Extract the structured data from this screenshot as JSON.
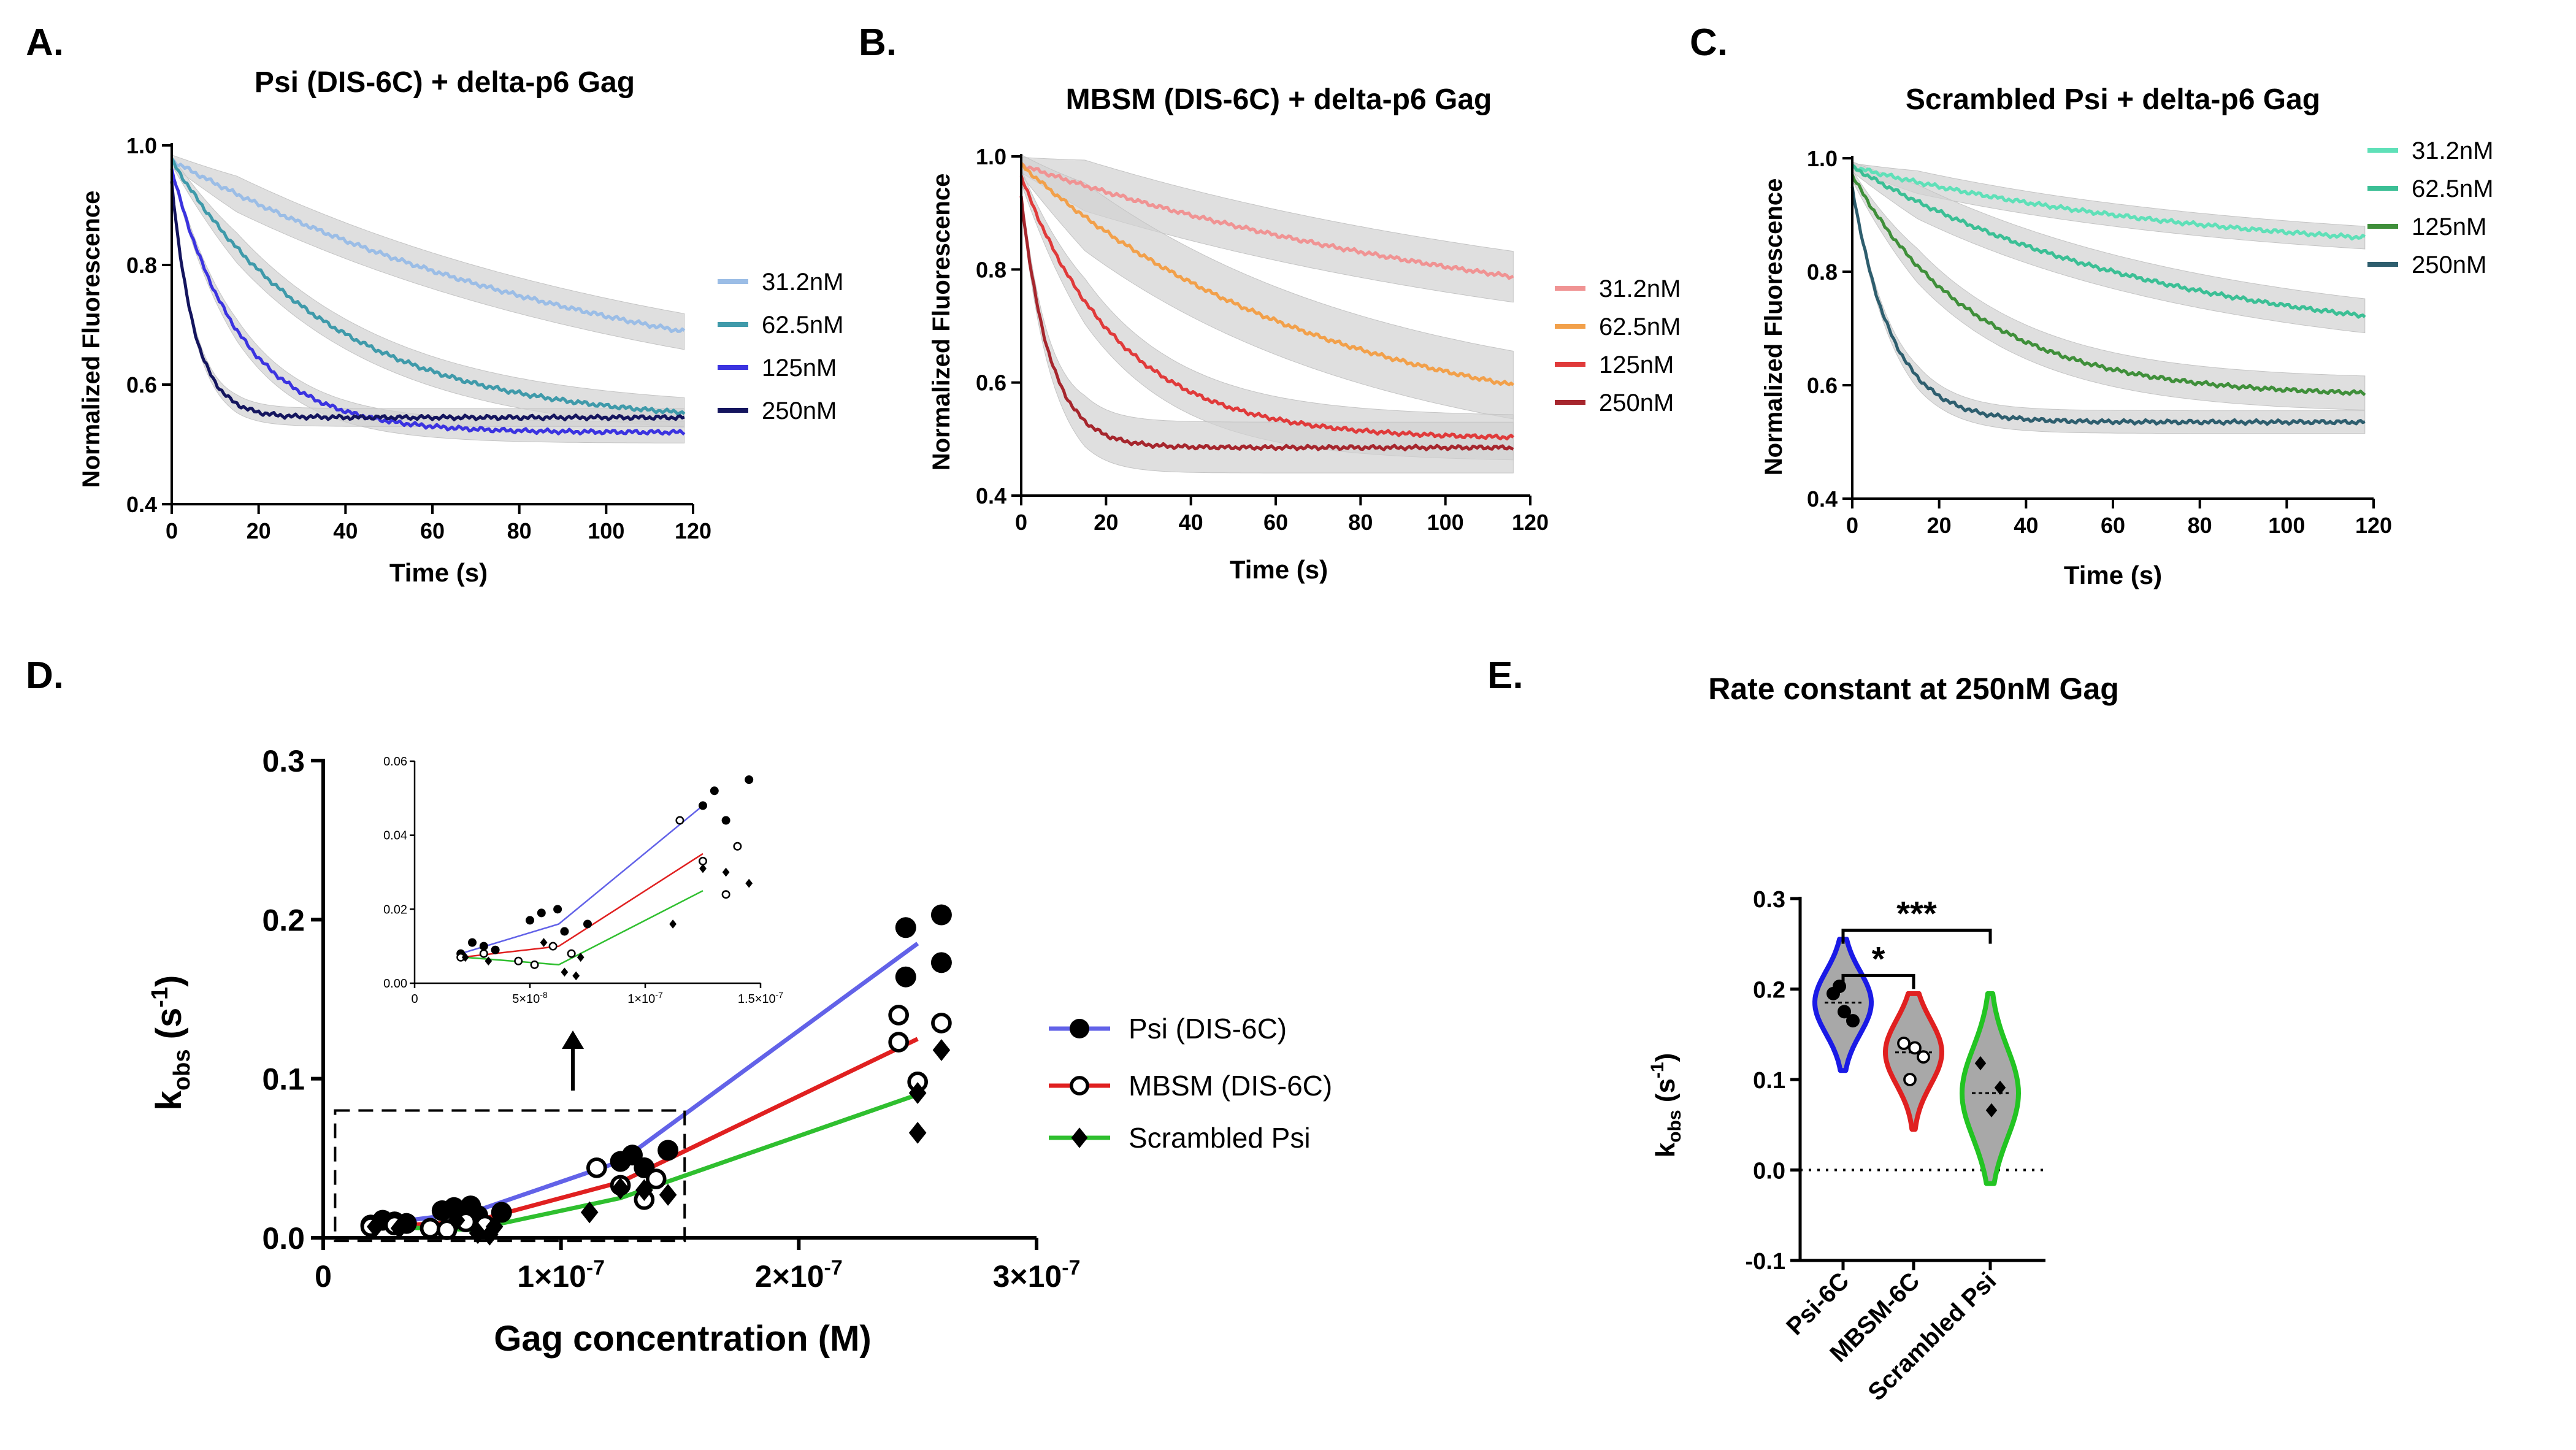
{
  "chart_data": [
    {
      "id": "A",
      "panel_label": "A.",
      "type": "line",
      "title": "Psi (DIS-6C) + delta-p6 Gag",
      "xlabel": "Time (s)",
      "ylabel": "Normalized Fluorescence",
      "xlim": [
        0,
        120
      ],
      "ylim": [
        0.4,
        1.0
      ],
      "xticks": [
        0,
        20,
        40,
        60,
        80,
        100,
        120
      ],
      "yticks": [
        0.4,
        0.6,
        0.8,
        1.0
      ],
      "x_tick_labels": [
        "0",
        "20",
        "40",
        "60",
        "80",
        "100",
        "120"
      ],
      "y_tick_labels": [
        "0.4",
        "0.6",
        "0.8",
        "1.0"
      ],
      "x_end": 118,
      "error_band": "light grey SEM band",
      "series": [
        {
          "name": "31.2nM",
          "color": "#9bbde6",
          "start": 0.975,
          "plateau": 0.55,
          "k": 0.0095,
          "err": 0.03
        },
        {
          "name": "62.5nM",
          "color": "#3f9aaa",
          "start": 0.975,
          "plateau": 0.535,
          "k": 0.027,
          "err": 0.025
        },
        {
          "name": "125nM",
          "color": "#3b33e0",
          "start": 0.96,
          "plateau": 0.52,
          "k": 0.063,
          "err": 0.018
        },
        {
          "name": "250nM",
          "color": "#14155e",
          "start": 0.94,
          "plateau": 0.545,
          "k": 0.19,
          "err": 0.015
        }
      ]
    },
    {
      "id": "B",
      "panel_label": "B.",
      "type": "line",
      "title": "MBSM (DIS-6C) + delta-p6 Gag",
      "xlabel": "Time (s)",
      "ylabel": "Normalized Fluorescence",
      "xlim": [
        0,
        120
      ],
      "ylim": [
        0.4,
        1.0
      ],
      "xticks": [
        0,
        20,
        40,
        60,
        80,
        100,
        120
      ],
      "yticks": [
        0.4,
        0.6,
        0.8,
        1.0
      ],
      "x_tick_labels": [
        "0",
        "20",
        "40",
        "60",
        "80",
        "100",
        "120"
      ],
      "y_tick_labels": [
        "0.4",
        "0.6",
        "0.8",
        "1.0"
      ],
      "x_end": 116,
      "error_band": "light grey SEM band",
      "series": [
        {
          "name": "31.2nM",
          "color": "#f09393",
          "start": 0.985,
          "plateau": 0.65,
          "k": 0.0077,
          "err": 0.045
        },
        {
          "name": "62.5nM",
          "color": "#f2a04a",
          "start": 0.985,
          "plateau": 0.5,
          "k": 0.014,
          "err": 0.06
        },
        {
          "name": "125nM",
          "color": "#e03a3a",
          "start": 0.965,
          "plateau": 0.5,
          "k": 0.043,
          "err": 0.04
        },
        {
          "name": "250nM",
          "color": "#a6262d",
          "start": 0.93,
          "plateau": 0.485,
          "k": 0.15,
          "err": 0.045
        }
      ]
    },
    {
      "id": "C",
      "panel_label": "C.",
      "type": "line",
      "title": "Scrambled Psi + delta-p6 Gag",
      "xlabel": "Time (s)",
      "ylabel": "Normalized Fluorescence",
      "xlim": [
        0,
        120
      ],
      "ylim": [
        0.4,
        1.0
      ],
      "xticks": [
        0,
        20,
        40,
        60,
        80,
        100,
        120
      ],
      "yticks": [
        0.4,
        0.6,
        0.8,
        1.0
      ],
      "x_tick_labels": [
        "0",
        "20",
        "40",
        "60",
        "80",
        "100",
        "120"
      ],
      "y_tick_labels": [
        "0.4",
        "0.6",
        "0.8",
        "1.0"
      ],
      "x_end": 118,
      "error_band": "light grey SEM band",
      "series": [
        {
          "name": "31.2nM",
          "color": "#5fe0b8",
          "start": 0.985,
          "plateau": 0.82,
          "k": 0.012,
          "err": 0.02
        },
        {
          "name": "62.5nM",
          "color": "#3bbf95",
          "start": 0.985,
          "plateau": 0.66,
          "k": 0.014,
          "err": 0.03
        },
        {
          "name": "125nM",
          "color": "#3f8f3a",
          "start": 0.97,
          "plateau": 0.58,
          "k": 0.035,
          "err": 0.03
        },
        {
          "name": "250nM",
          "color": "#2e5e6e",
          "start": 0.95,
          "plateau": 0.535,
          "k": 0.11,
          "err": 0.02
        }
      ]
    },
    {
      "id": "D",
      "panel_label": "D.",
      "type": "scatter",
      "title": "",
      "xlabel": "Gag concentration (M)",
      "ylabel_main": "k",
      "ylabel_sub": "obs",
      "ylabel_unit_open": " (s",
      "ylabel_unit_sup": "-1",
      "ylabel_unit_close": ")",
      "xlim": [
        0,
        3e-07
      ],
      "ylim": [
        0,
        0.3
      ],
      "xticks": [
        0,
        1e-07,
        2e-07,
        3e-07
      ],
      "x_tick_labels": [
        "0",
        "1×10",
        "2×10",
        "3×10"
      ],
      "x_tick_exponent": "-7",
      "yticks": [
        0.0,
        0.1,
        0.2,
        0.3
      ],
      "y_tick_labels": [
        "0.0",
        "0.1",
        "0.2",
        "0.3"
      ],
      "series": [
        {
          "name": "Psi (DIS-6C)",
          "marker": "filled-circle",
          "line_color": "#6262e8",
          "points": [
            [
              2e-08,
              0.008
            ],
            [
              2.5e-08,
              0.011
            ],
            [
              3e-08,
              0.01
            ],
            [
              3.5e-08,
              0.009
            ],
            [
              5e-08,
              0.017
            ],
            [
              5.5e-08,
              0.019
            ],
            [
              6.2e-08,
              0.02
            ],
            [
              6.5e-08,
              0.014
            ],
            [
              7.5e-08,
              0.016
            ],
            [
              1.25e-07,
              0.048
            ],
            [
              1.3e-07,
              0.052
            ],
            [
              1.45e-07,
              0.055
            ],
            [
              1.35e-07,
              0.044
            ],
            [
              2.45e-07,
              0.195
            ],
            [
              2.45e-07,
              0.164
            ],
            [
              2.6e-07,
              0.203
            ],
            [
              2.6e-07,
              0.173
            ]
          ],
          "fit": [
            [
              2e-08,
              0.008
            ],
            [
              6.25e-08,
              0.016
            ],
            [
              1.25e-07,
              0.048
            ],
            [
              2.5e-07,
              0.185
            ]
          ]
        },
        {
          "name": "MBSM (DIS-6C)",
          "marker": "open-circle",
          "line_color": "#e02020",
          "points": [
            [
              2e-08,
              0.007
            ],
            [
              3e-08,
              0.008
            ],
            [
              4.5e-08,
              0.006
            ],
            [
              5.2e-08,
              0.005
            ],
            [
              6e-08,
              0.01
            ],
            [
              6.8e-08,
              0.008
            ],
            [
              1.15e-07,
              0.044
            ],
            [
              1.25e-07,
              0.033
            ],
            [
              1.35e-07,
              0.024
            ],
            [
              1.4e-07,
              0.037
            ],
            [
              2.42e-07,
              0.14
            ],
            [
              2.42e-07,
              0.123
            ],
            [
              2.5e-07,
              0.098
            ],
            [
              2.6e-07,
              0.135
            ]
          ],
          "fit": [
            [
              2e-08,
              0.007
            ],
            [
              6.25e-08,
              0.01
            ],
            [
              1.25e-07,
              0.035
            ],
            [
              2.5e-07,
              0.125
            ]
          ]
        },
        {
          "name": "Scrambled Psi",
          "marker": "filled-diamond",
          "line_color": "#2fbf2f",
          "points": [
            [
              2.2e-08,
              0.007
            ],
            [
              3.2e-08,
              0.006
            ],
            [
              5.6e-08,
              0.011
            ],
            [
              6.5e-08,
              0.003
            ],
            [
              7e-08,
              0.002
            ],
            [
              7.2e-08,
              0.007
            ],
            [
              1.12e-07,
              0.016
            ],
            [
              1.25e-07,
              0.031
            ],
            [
              1.35e-07,
              0.03
            ],
            [
              1.45e-07,
              0.027
            ],
            [
              2.5e-07,
              0.091
            ],
            [
              2.5e-07,
              0.066
            ],
            [
              2.6e-07,
              0.118
            ]
          ],
          "fit": [
            [
              2.2e-08,
              0.007
            ],
            [
              6.25e-08,
              0.005
            ],
            [
              1.25e-07,
              0.025
            ],
            [
              2.5e-07,
              0.09
            ]
          ]
        }
      ],
      "inset": {
        "xlim": [
          0,
          1.5e-07
        ],
        "ylim": [
          0,
          0.06
        ],
        "xticks": [
          0,
          5e-08,
          1e-07,
          1.5e-07
        ],
        "x_tick_labels": [
          "0",
          "5×10",
          "1×10",
          "1.5×10"
        ],
        "x_tick_exponents": [
          "",
          "-8",
          "-7",
          "-7"
        ],
        "yticks": [
          0,
          0.02,
          0.04,
          0.06
        ],
        "y_tick_labels": [
          "0.00",
          "0.02",
          "0.04",
          "0.06"
        ]
      },
      "zoom_box": {
        "xrange": [
          5e-09,
          1.52e-07
        ],
        "yrange": [
          -0.002,
          0.08
        ]
      }
    },
    {
      "id": "E",
      "panel_label": "E.",
      "type": "violin",
      "title": "Rate constant at 250nM Gag",
      "ylabel_main": "k",
      "ylabel_sub": "obs",
      "ylabel_unit_open": " (s",
      "ylabel_unit_sup": "-1",
      "ylabel_unit_close": ")",
      "ylim": [
        -0.1,
        0.3
      ],
      "yticks": [
        -0.1,
        0.0,
        0.1,
        0.2,
        0.3
      ],
      "y_tick_labels": [
        "-0.1",
        "0.0",
        "0.1",
        "0.2",
        "0.3"
      ],
      "categories": [
        "Psi-6C",
        "MBSM-6C",
        "Scrambled Psi"
      ],
      "groups": [
        {
          "name": "Psi-6C",
          "color": "#1a1ae6",
          "marker": "filled-circle",
          "values": [
            0.195,
            0.165,
            0.175,
            0.203
          ],
          "median": 0.185,
          "min": 0.11,
          "max": 0.255
        },
        {
          "name": "MBSM-6C",
          "color": "#e02020",
          "marker": "open-circle",
          "values": [
            0.14,
            0.125,
            0.135,
            0.1
          ],
          "median": 0.13,
          "min": 0.045,
          "max": 0.195
        },
        {
          "name": "Scrambled Psi",
          "color": "#22c422",
          "marker": "filled-diamond",
          "values": [
            0.118,
            0.091,
            0.066
          ],
          "median": 0.085,
          "min": -0.015,
          "max": 0.195
        }
      ],
      "significance": [
        {
          "from": 0,
          "to": 1,
          "label": "*",
          "y": 0.215
        },
        {
          "from": 0,
          "to": 2,
          "label": "***",
          "y": 0.265
        }
      ],
      "reference_line": 0.0
    }
  ]
}
